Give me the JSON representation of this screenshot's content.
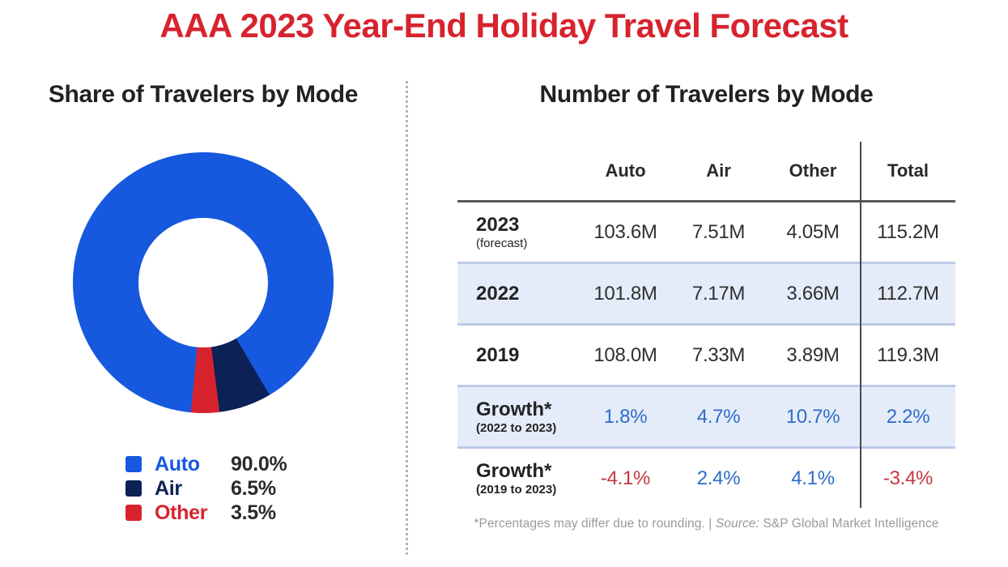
{
  "title": "AAA 2023 Year-End Holiday Travel Forecast",
  "left_panel": {
    "heading": "Share of Travelers by Mode",
    "legend": [
      {
        "label": "Auto",
        "value": "90.0%"
      },
      {
        "label": "Air",
        "value": "6.5%"
      },
      {
        "label": "Other",
        "value": "3.5%"
      }
    ]
  },
  "right_panel": {
    "heading": "Number of Travelers by Mode",
    "table": {
      "columns": [
        "Auto",
        "Air",
        "Other",
        "Total"
      ],
      "rows": [
        {
          "label": "2023",
          "sublabel": "(forecast)",
          "values": [
            "103.6M",
            "7.51M",
            "4.05M",
            "115.2M"
          ]
        },
        {
          "label": "2022",
          "sublabel": "",
          "values": [
            "101.8M",
            "7.17M",
            "3.66M",
            "112.7M"
          ]
        },
        {
          "label": "2019",
          "sublabel": "",
          "values": [
            "108.0M",
            "7.33M",
            "3.89M",
            "119.3M"
          ]
        },
        {
          "label": "Growth*",
          "sublabel": "(2022 to 2023)",
          "values": [
            "1.8%",
            "4.7%",
            "10.7%",
            "2.2%"
          ]
        },
        {
          "label": "Growth*",
          "sublabel": "(2019 to 2023)",
          "values": [
            "-4.1%",
            "2.4%",
            "4.1%",
            "-3.4%"
          ]
        }
      ]
    },
    "footnote_plain": "*Percentages may differ due to rounding. | ",
    "footnote_source_label": "Source:",
    "footnote_source_text": " S&P Global Market Intelligence"
  },
  "colors": {
    "title_red": "#d7232e",
    "auto_blue": "#1658de",
    "air_navy": "#0c2155",
    "other_red": "#d7232e",
    "band_fill": "#e4ecf9",
    "band_border": "#bcc9e7",
    "rule_gray": "#58595b",
    "growth_positive_blue": "#2e6cc8",
    "growth_negative_red": "#c5383f",
    "footnote_gray": "#9a9a9a"
  },
  "chart_data": [
    {
      "type": "pie",
      "donut": true,
      "title": "Share of Travelers by Mode",
      "labels": [
        "Auto",
        "Air",
        "Other"
      ],
      "values": [
        90.0,
        6.5,
        3.5
      ],
      "colors": [
        "#1658de",
        "#0c2155",
        "#d7232e"
      ],
      "start_angle_deg": 185.4,
      "legend_position": "bottom"
    },
    {
      "type": "table",
      "title": "Number of Travelers by Mode",
      "columns": [
        "Auto",
        "Air",
        "Other",
        "Total"
      ],
      "row_labels": [
        "2023 (forecast)",
        "2022",
        "2019",
        "Growth* (2022 to 2023)",
        "Growth* (2019 to 2023)"
      ],
      "rows": [
        [
          103.6,
          7.51,
          4.05,
          115.2
        ],
        [
          101.8,
          7.17,
          3.66,
          112.7
        ],
        [
          108.0,
          7.33,
          3.89,
          119.3
        ],
        [
          1.8,
          4.7,
          10.7,
          2.2
        ],
        [
          -4.1,
          2.4,
          4.1,
          -3.4
        ]
      ],
      "units": [
        "millions",
        "millions",
        "millions",
        "percent",
        "percent"
      ]
    }
  ]
}
